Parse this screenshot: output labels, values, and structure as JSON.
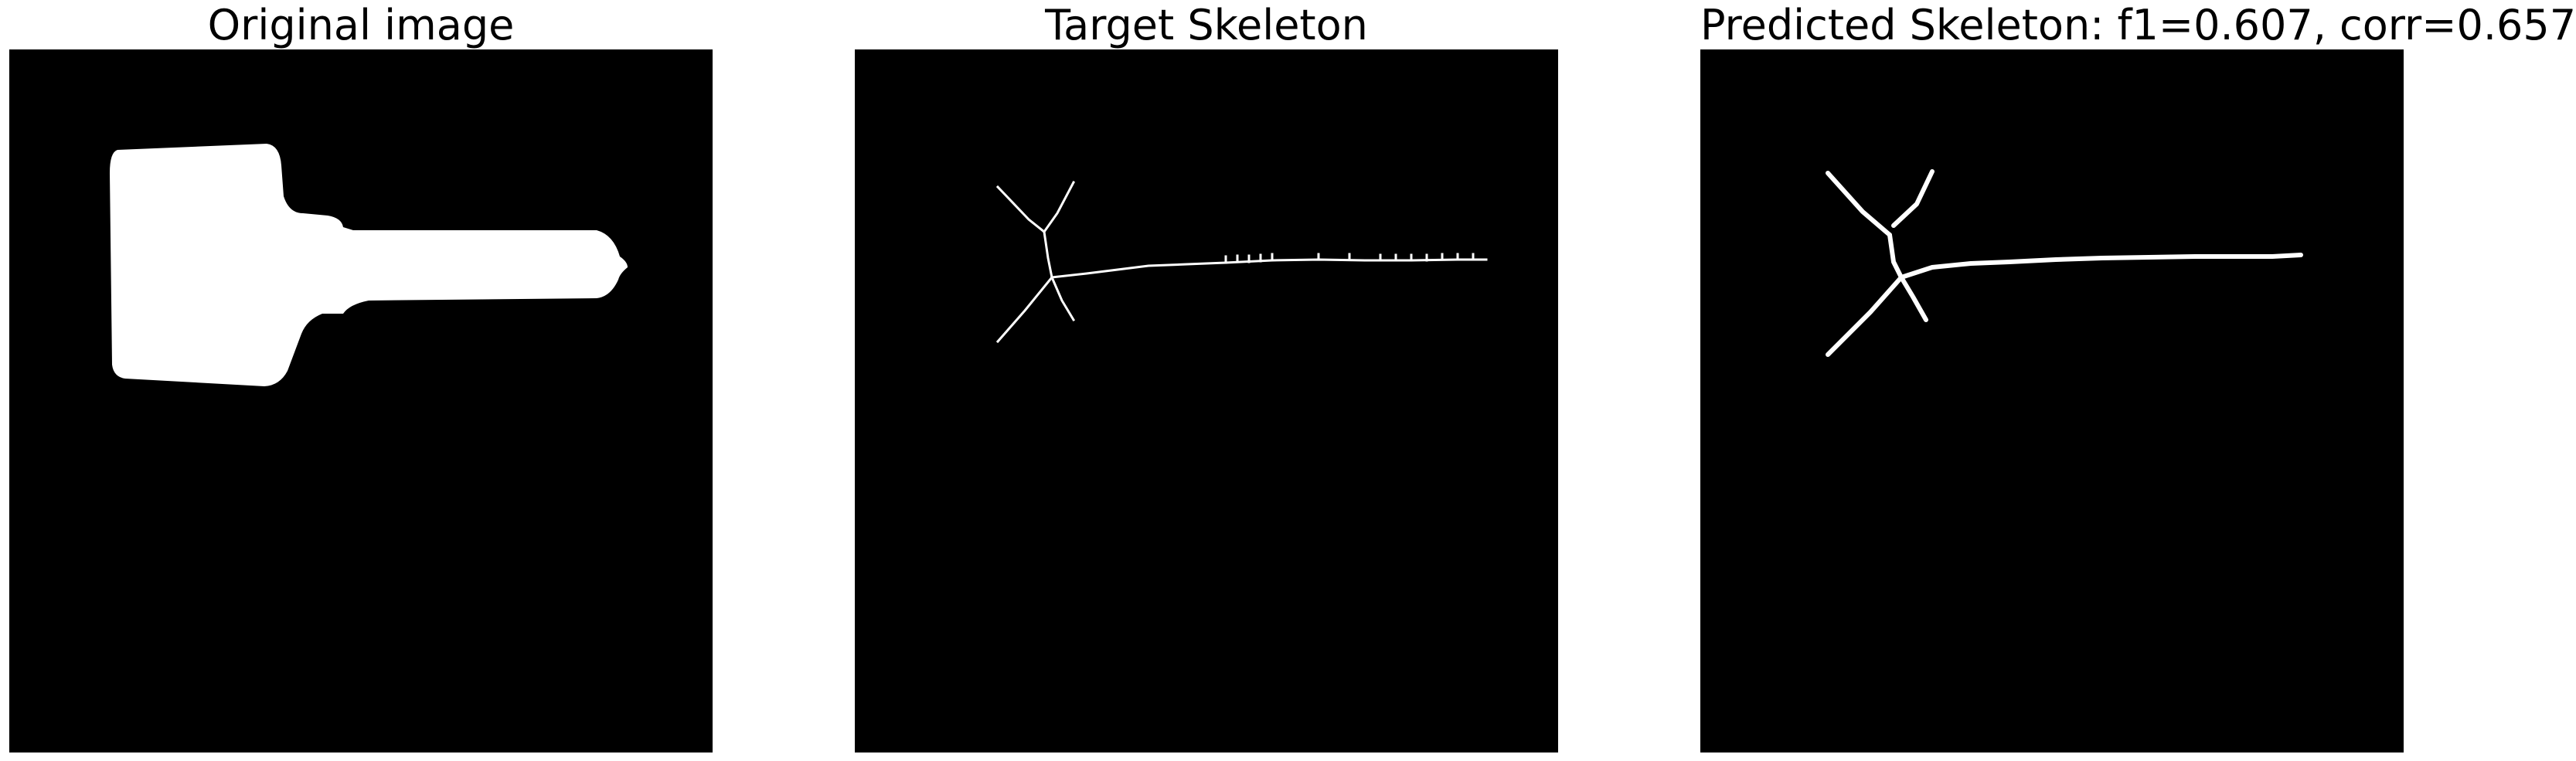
{
  "figure": {
    "panels": [
      {
        "title": "Original image"
      },
      {
        "title": "Target Skeleton"
      },
      {
        "title": "Predicted Skeleton: f1=0.607, corr=0.657"
      }
    ]
  },
  "colors": {
    "background": "#000000",
    "foreground": "#ffffff"
  }
}
